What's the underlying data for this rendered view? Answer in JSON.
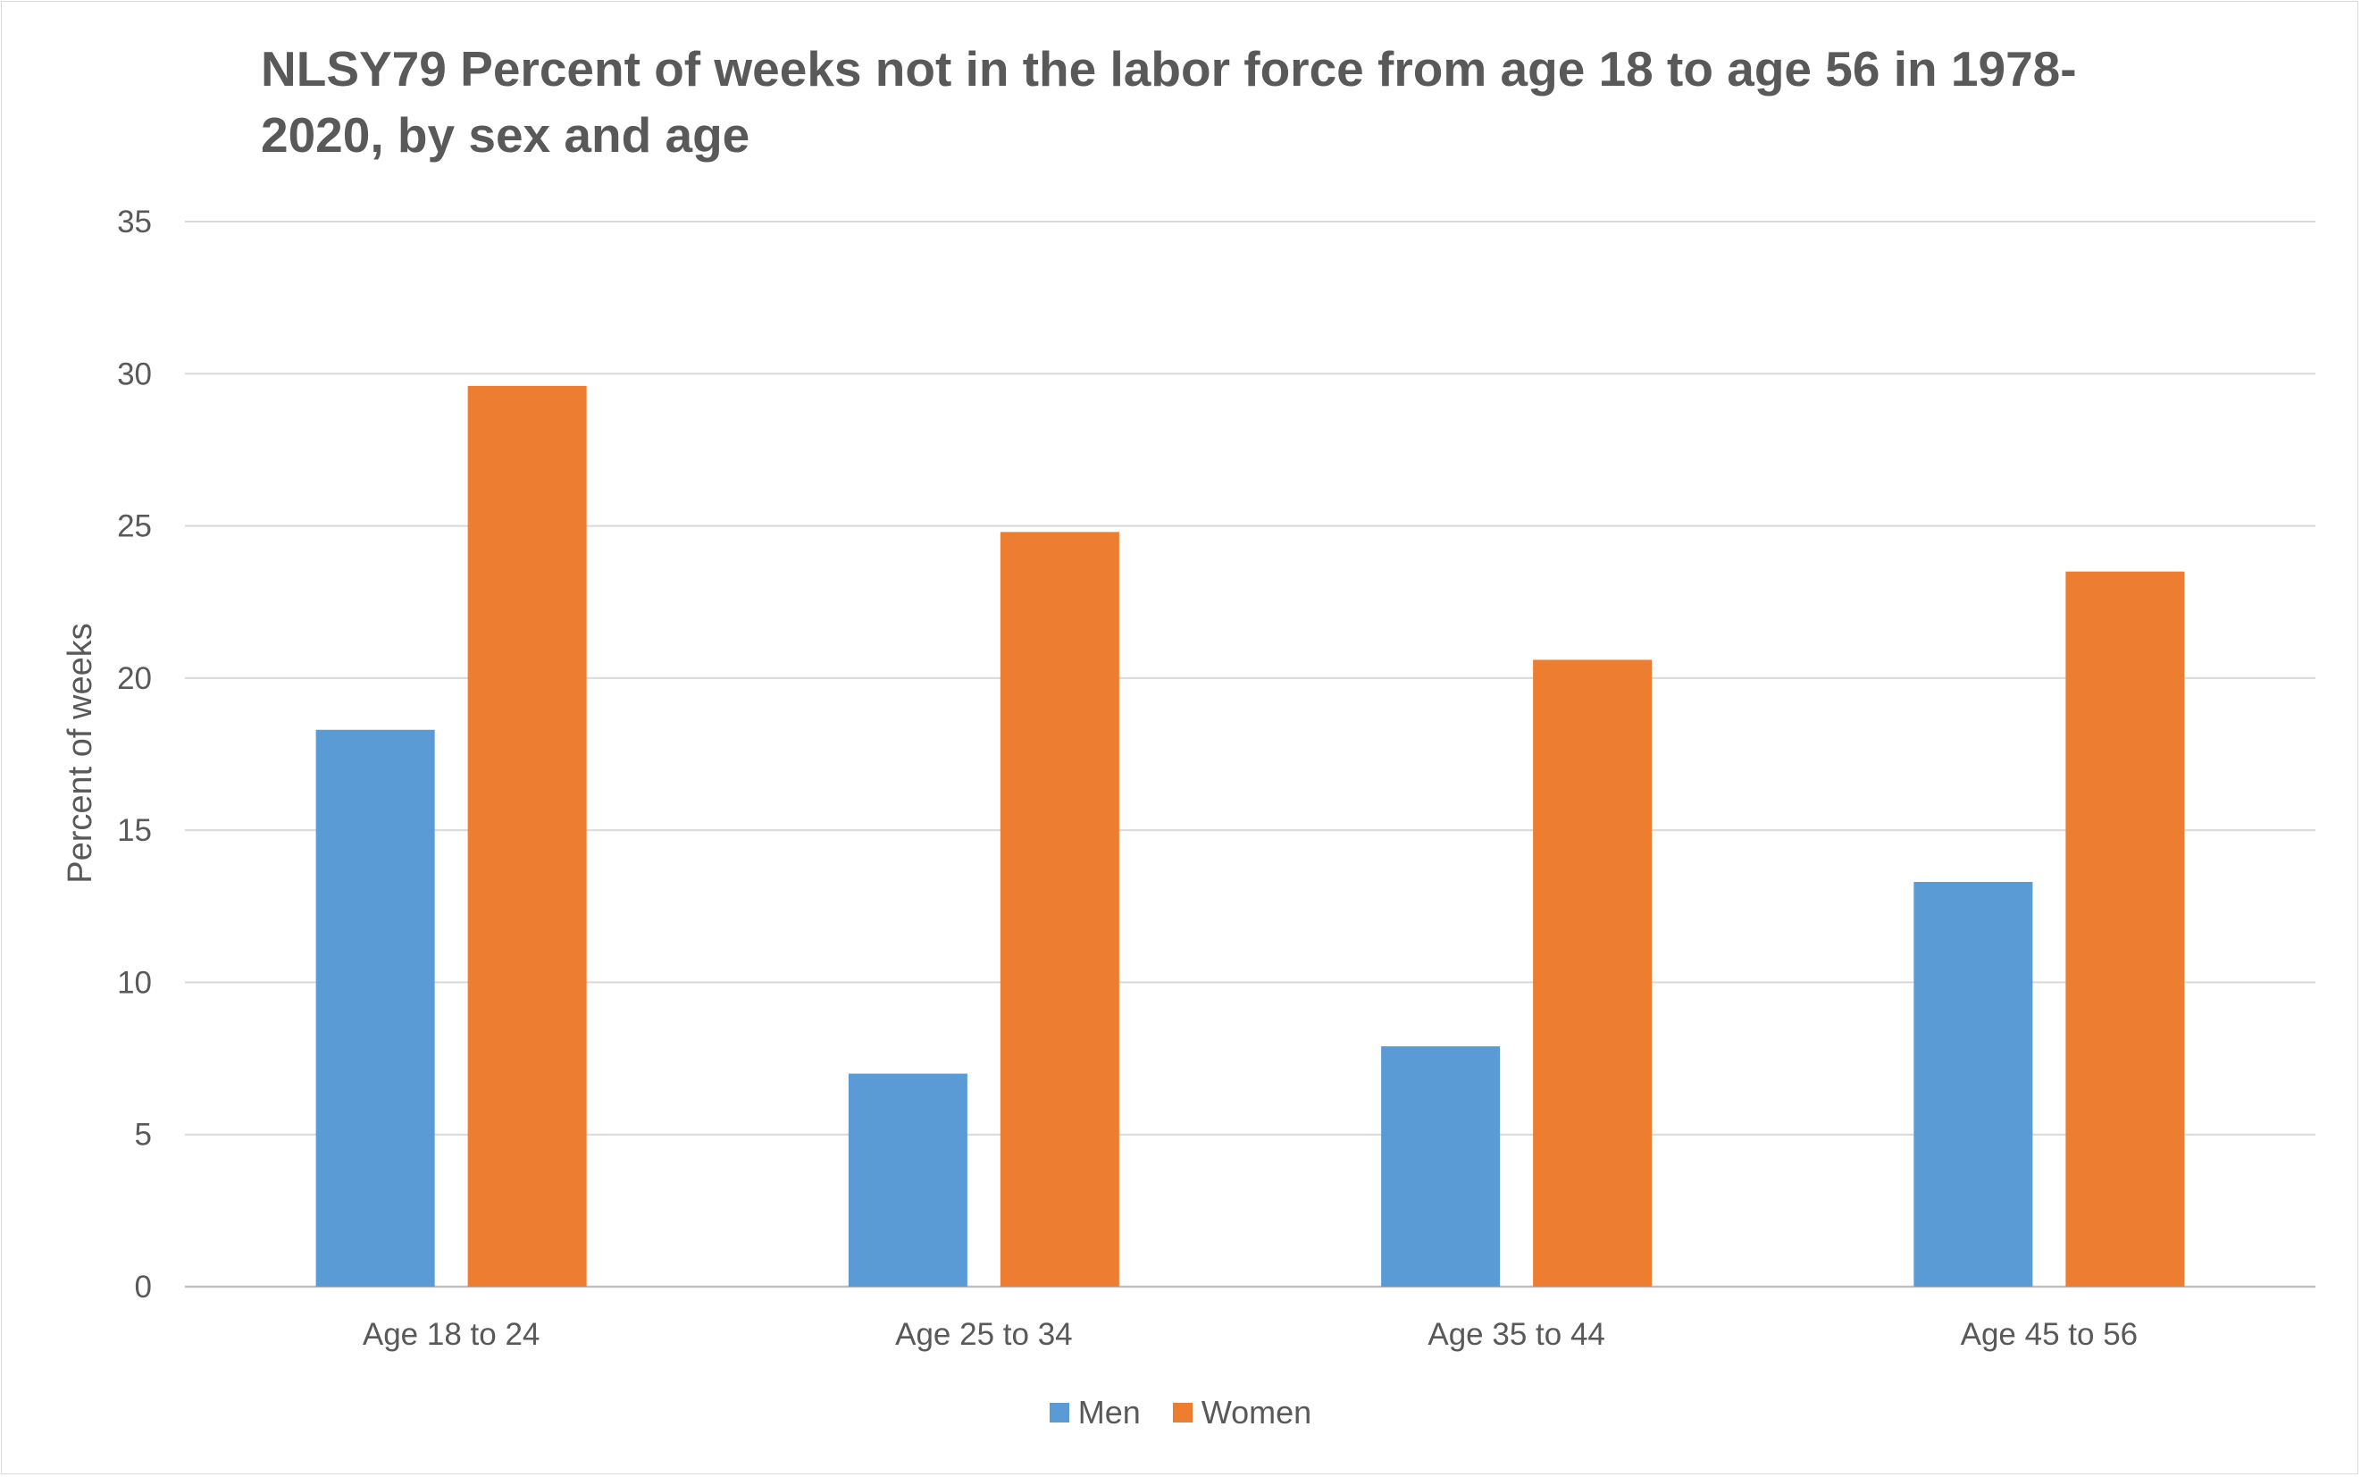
{
  "chart_data": {
    "type": "bar",
    "title": "NLSY79 Percent of weeks not in the labor force from age 18 to age 56 in 1978-2020, by sex and age",
    "xlabel": "",
    "ylabel": "Percent of weeks",
    "ylim": [
      0,
      35
    ],
    "yticks": [
      0,
      5,
      10,
      15,
      20,
      25,
      30,
      35
    ],
    "grid": true,
    "legend_position": "bottom",
    "categories": [
      "Age 18 to 24",
      "Age 25 to 34",
      "Age 35 to 44",
      "Age 45 to 56"
    ],
    "series": [
      {
        "name": "Men",
        "color": "#5B9BD5",
        "values": [
          18.3,
          7.0,
          7.9,
          13.3
        ]
      },
      {
        "name": "Women",
        "color": "#ED7D31",
        "values": [
          29.6,
          24.8,
          20.6,
          23.5
        ]
      }
    ]
  }
}
